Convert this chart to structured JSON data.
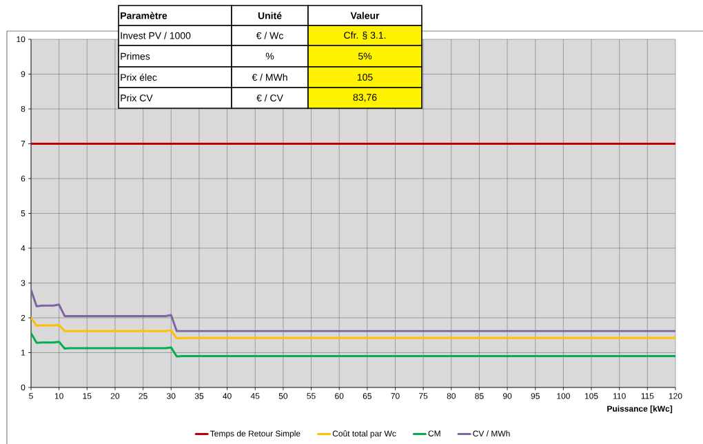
{
  "chart_data": {
    "type": "line",
    "xlabel": "Puissance [kWc]",
    "x": [
      5,
      6,
      7,
      8,
      9,
      10,
      11,
      12,
      20,
      29,
      30,
      31,
      32,
      60,
      120
    ],
    "series": [
      {
        "name": "Temps de Retour Simple",
        "color": "#c00000",
        "x": [
          5,
          120
        ],
        "values": [
          7,
          7
        ]
      },
      {
        "name": "Coût total par Wc",
        "color": "#ffc000",
        "values": [
          2.01,
          1.77,
          1.78,
          1.78,
          1.78,
          1.79,
          1.62,
          1.62,
          1.62,
          1.62,
          1.64,
          1.41,
          1.42,
          1.42,
          1.42
        ]
      },
      {
        "name": "CM",
        "color": "#00b050",
        "values": [
          1.56,
          1.28,
          1.29,
          1.29,
          1.29,
          1.31,
          1.12,
          1.13,
          1.13,
          1.13,
          1.15,
          0.89,
          0.9,
          0.9,
          0.9
        ]
      },
      {
        "name": "CV / MWh",
        "color": "#8064a2",
        "values": [
          2.8,
          2.33,
          2.35,
          2.35,
          2.35,
          2.38,
          2.05,
          2.05,
          2.05,
          2.05,
          2.08,
          1.62,
          1.62,
          1.62,
          1.62
        ]
      }
    ],
    "xlim": [
      5,
      120
    ],
    "xticks": [
      5,
      10,
      15,
      20,
      25,
      30,
      35,
      40,
      45,
      50,
      55,
      60,
      65,
      70,
      75,
      80,
      85,
      90,
      95,
      100,
      105,
      110,
      115,
      120
    ],
    "ylim": [
      0,
      10
    ],
    "yticks": [
      0,
      1,
      2,
      3,
      4,
      5,
      6,
      7,
      8,
      9,
      10
    ],
    "grid": true,
    "legend": "bottom",
    "marker": "none",
    "line_style": "solid",
    "annotations": [
      "Paramètre",
      "Unité",
      "Valeur",
      "Invest PV / 1000",
      "€ / Wc",
      "Cfr. § 3.1.",
      "Primes",
      "%",
      "5%",
      "Prix élec",
      "€ / MWh",
      "105",
      "Prix CV",
      "€ / CV",
      "83,76"
    ]
  }
}
